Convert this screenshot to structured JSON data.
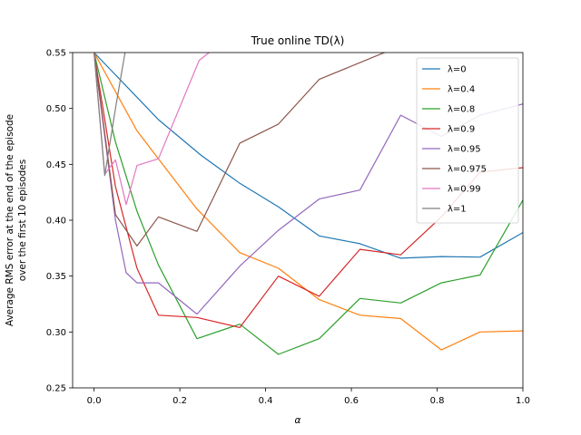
{
  "chart_data": {
    "type": "line",
    "title": "True online TD(λ)",
    "xlabel": "α",
    "ylabel_lines": [
      "Average RMS error at the end of the episode",
      "over the first 10 episodes"
    ],
    "xlim": [
      -0.05,
      1.0
    ],
    "ylim": [
      0.25,
      0.55
    ],
    "xticks": [
      "0.0",
      "0.2",
      "0.4",
      "0.6",
      "0.8",
      "1.0"
    ],
    "yticks": [
      "0.25",
      "0.30",
      "0.35",
      "0.40",
      "0.45",
      "0.50",
      "0.55"
    ],
    "legend_position": "top-right",
    "series": [
      {
        "name": "λ=0",
        "color": "#1f77b4",
        "x": [
          0,
          0.1,
          0.15,
          0.25,
          0.34,
          0.43,
          0.525,
          0.62,
          0.715,
          0.81,
          0.9,
          1.0
        ],
        "y": [
          0.55,
          0.51,
          0.49,
          0.458,
          0.433,
          0.412,
          0.386,
          0.379,
          0.366,
          0.3675,
          0.367,
          0.389
        ]
      },
      {
        "name": "λ=0.4",
        "color": "#ff7f0e",
        "x": [
          0,
          0.1,
          0.15,
          0.24,
          0.34,
          0.43,
          0.525,
          0.62,
          0.715,
          0.81,
          0.9,
          1.0
        ],
        "y": [
          0.55,
          0.48,
          0.455,
          0.41,
          0.371,
          0.357,
          0.329,
          0.315,
          0.312,
          0.284,
          0.3,
          0.301
        ]
      },
      {
        "name": "λ=0.8",
        "color": "#2ca02c",
        "x": [
          0,
          0.05,
          0.1,
          0.15,
          0.24,
          0.34,
          0.43,
          0.525,
          0.62,
          0.715,
          0.81,
          0.9,
          1.0
        ],
        "y": [
          0.55,
          0.47,
          0.408,
          0.36,
          0.294,
          0.307,
          0.28,
          0.294,
          0.33,
          0.326,
          0.344,
          0.351,
          0.418
        ]
      },
      {
        "name": "λ=0.9",
        "color": "#d62728",
        "x": [
          0,
          0.05,
          0.1,
          0.15,
          0.24,
          0.34,
          0.43,
          0.525,
          0.62,
          0.715,
          0.81,
          0.9,
          1.0
        ],
        "y": [
          0.55,
          0.43,
          0.357,
          0.315,
          0.313,
          0.304,
          0.35,
          0.332,
          0.374,
          0.369,
          0.403,
          0.443,
          0.447
        ]
      },
      {
        "name": "λ=0.95",
        "color": "#9467bd",
        "x": [
          0,
          0.05,
          0.075,
          0.1,
          0.15,
          0.24,
          0.34,
          0.43,
          0.525,
          0.62,
          0.715,
          0.81,
          0.9,
          1.0
        ],
        "y": [
          0.55,
          0.4,
          0.353,
          0.344,
          0.344,
          0.316,
          0.359,
          0.391,
          0.419,
          0.427,
          0.494,
          0.475,
          0.494,
          0.504
        ]
      },
      {
        "name": "λ=0.975",
        "color": "#8c564b",
        "x": [
          0,
          0.05,
          0.1,
          0.15,
          0.24,
          0.34,
          0.43,
          0.525,
          0.62,
          0.715
        ],
        "y": [
          0.55,
          0.405,
          0.377,
          0.403,
          0.39,
          0.469,
          0.486,
          0.526,
          0.541,
          0.556
        ]
      },
      {
        "name": "λ=0.99",
        "color": "#e377c2",
        "x": [
          0,
          0.025,
          0.05,
          0.075,
          0.1,
          0.15,
          0.245,
          0.275
        ],
        "y": [
          0.55,
          0.441,
          0.454,
          0.414,
          0.449,
          0.455,
          0.543,
          0.552
        ]
      },
      {
        "name": "λ=1",
        "color": "#7f7f7f",
        "x": [
          0,
          0.025,
          0.05,
          0.075
        ],
        "y": [
          0.55,
          0.44,
          0.5,
          0.556
        ]
      }
    ]
  }
}
